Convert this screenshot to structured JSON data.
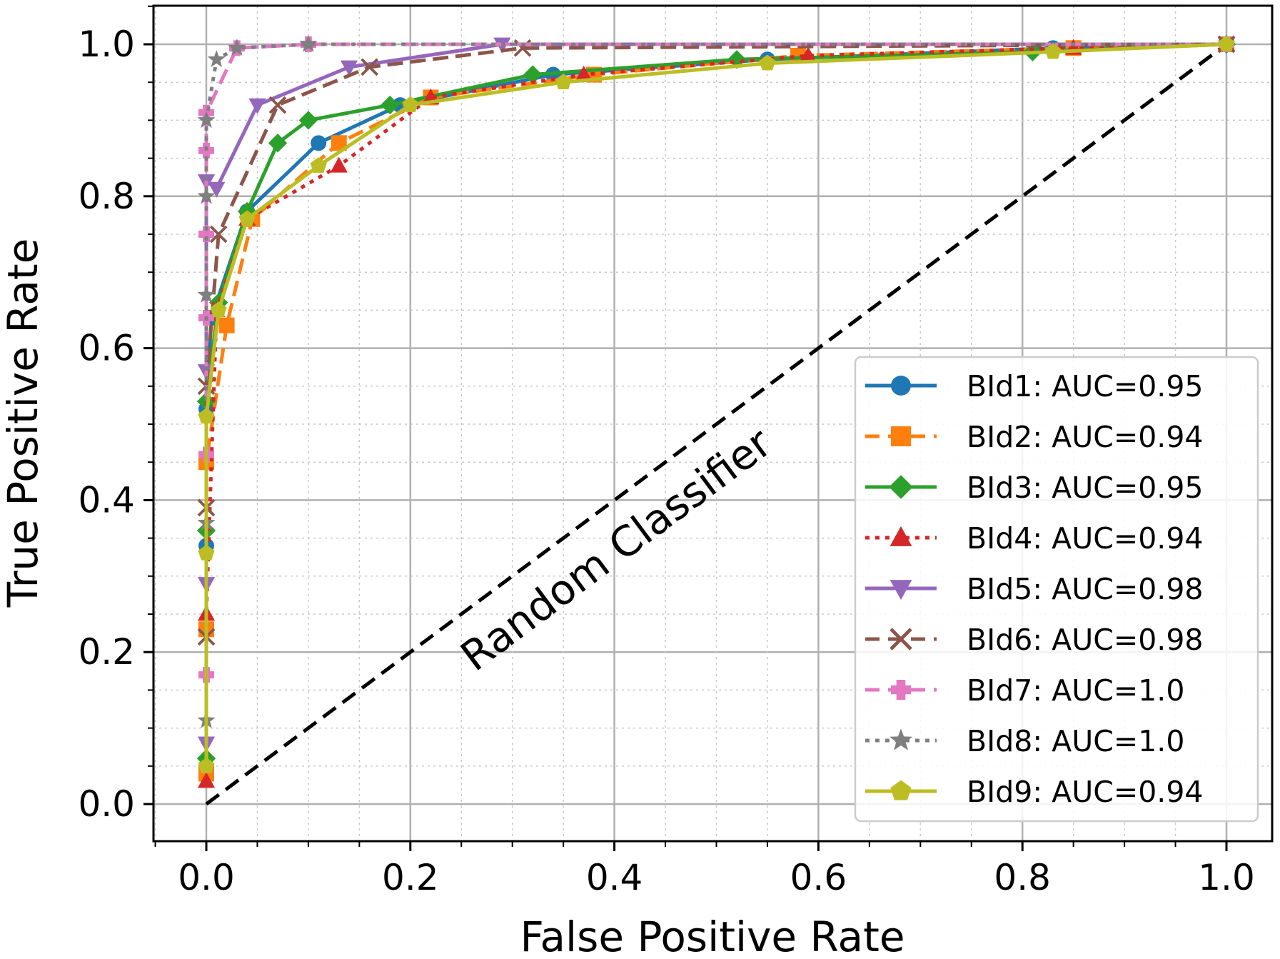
{
  "chart_data": {
    "type": "line",
    "title": "",
    "xlabel": "False Positive Rate",
    "ylabel": "True Positive Rate",
    "xlim": [
      -0.05,
      1.05
    ],
    "ylim": [
      -0.05,
      1.05
    ],
    "xticks": [
      "0.0",
      "0.2",
      "0.4",
      "0.6",
      "0.8",
      "1.0"
    ],
    "yticks": [
      "0.0",
      "0.2",
      "0.4",
      "0.6",
      "0.8",
      "1.0"
    ],
    "grid": true,
    "legend_position": "lower-right",
    "annotation": "Random Classifier",
    "baseline": {
      "name": "Random Classifier",
      "x": [
        0,
        1
      ],
      "y": [
        0,
        1
      ],
      "color": "#000000",
      "style": "dashed"
    },
    "series": [
      {
        "name": "BId1: AUC=0.95",
        "color": "#1f77b4",
        "marker": "circle",
        "style": "solid",
        "x": [
          0,
          0,
          0,
          0.005,
          0.04,
          0.11,
          0.19,
          0.34,
          0.55,
          0.83,
          1.0
        ],
        "y": [
          0.05,
          0.34,
          0.52,
          0.64,
          0.78,
          0.87,
          0.92,
          0.96,
          0.98,
          0.995,
          1.0
        ]
      },
      {
        "name": "BId2: AUC=0.94",
        "color": "#ff7f0e",
        "marker": "square",
        "style": "dashed",
        "x": [
          0,
          0,
          0,
          0.02,
          0.045,
          0.13,
          0.22,
          0.38,
          0.58,
          0.85,
          1.0
        ],
        "y": [
          0.04,
          0.23,
          0.45,
          0.63,
          0.77,
          0.87,
          0.93,
          0.96,
          0.985,
          0.995,
          1.0
        ]
      },
      {
        "name": "BId3: AUC=0.95",
        "color": "#2ca02c",
        "marker": "diamond",
        "style": "solid",
        "x": [
          0,
          0,
          0,
          0.012,
          0.04,
          0.07,
          0.1,
          0.18,
          0.32,
          0.52,
          0.81,
          1.0
        ],
        "y": [
          0.06,
          0.36,
          0.53,
          0.66,
          0.78,
          0.87,
          0.9,
          0.92,
          0.96,
          0.98,
          0.99,
          1.0
        ]
      },
      {
        "name": "BId4: AUC=0.94",
        "color": "#d62728",
        "marker": "triangle-up",
        "style": "dotted",
        "x": [
          0,
          0,
          0.01,
          0.04,
          0.13,
          0.22,
          0.37,
          0.59,
          0.85,
          1.0
        ],
        "y": [
          0.03,
          0.25,
          0.65,
          0.77,
          0.84,
          0.93,
          0.96,
          0.985,
          0.995,
          1.0
        ]
      },
      {
        "name": "BId5: AUC=0.98",
        "color": "#9467bd",
        "marker": "triangle-down",
        "style": "solid",
        "x": [
          0,
          0,
          0,
          0,
          0.01,
          0.05,
          0.14,
          0.29,
          1.0
        ],
        "y": [
          0.08,
          0.29,
          0.57,
          0.82,
          0.81,
          0.92,
          0.97,
          1.0,
          1.0
        ]
      },
      {
        "name": "BId6: AUC=0.98",
        "color": "#8c564b",
        "marker": "x",
        "style": "dashed",
        "x": [
          0,
          0,
          0,
          0.012,
          0.07,
          0.16,
          0.31,
          1.0
        ],
        "y": [
          0.22,
          0.39,
          0.55,
          0.75,
          0.92,
          0.97,
          0.995,
          1.0
        ]
      },
      {
        "name": "BId7: AUC=1.0",
        "color": "#e377c2",
        "marker": "plus",
        "style": "dashed",
        "x": [
          0,
          0,
          0,
          0,
          0,
          0,
          0.03,
          0.1,
          1.0
        ],
        "y": [
          0.17,
          0.46,
          0.64,
          0.75,
          0.86,
          0.91,
          0.995,
          1.0,
          1.0
        ]
      },
      {
        "name": "BId8: AUC=1.0",
        "color": "#7f7f7f",
        "marker": "star",
        "style": "dotted",
        "x": [
          0,
          0,
          0,
          0,
          0,
          0.01,
          0.03,
          0.1,
          1.0
        ],
        "y": [
          0.11,
          0.37,
          0.67,
          0.8,
          0.9,
          0.98,
          0.995,
          1.0,
          1.0
        ]
      },
      {
        "name": "BId9: AUC=0.94",
        "color": "#bcbd22",
        "marker": "pentagon",
        "style": "solid",
        "x": [
          0,
          0,
          0,
          0.012,
          0.04,
          0.11,
          0.2,
          0.35,
          0.55,
          0.83,
          1.0
        ],
        "y": [
          0.05,
          0.33,
          0.51,
          0.65,
          0.77,
          0.84,
          0.92,
          0.95,
          0.975,
          0.99,
          1.0
        ]
      }
    ]
  }
}
